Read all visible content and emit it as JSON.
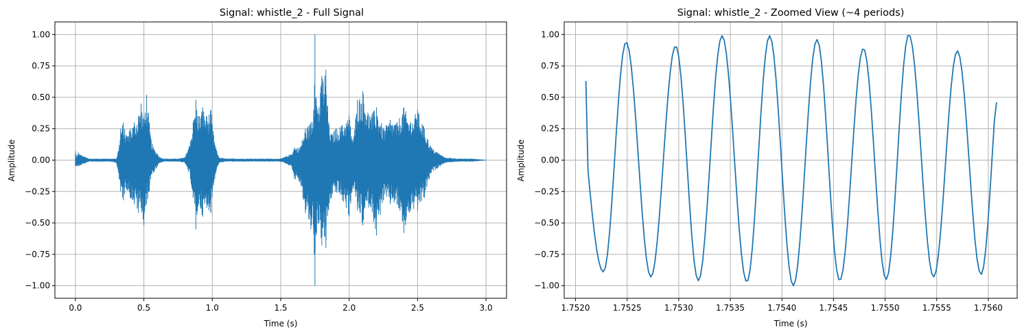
{
  "chart_data": [
    {
      "type": "line",
      "title": "Signal: whistle_2 - Full Signal",
      "xlabel": "Time (s)",
      "ylabel": "Amplitude",
      "xlim": [
        -0.15,
        3.15
      ],
      "ylim": [
        -1.1,
        1.1
      ],
      "xticks": [
        0.0,
        0.5,
        1.0,
        1.5,
        2.0,
        2.5,
        3.0
      ],
      "xtick_labels": [
        "0.0",
        "0.5",
        "1.0",
        "1.5",
        "2.0",
        "2.5",
        "3.0"
      ],
      "yticks": [
        -1.0,
        -0.75,
        -0.5,
        -0.25,
        0.0,
        0.25,
        0.5,
        0.75,
        1.0
      ],
      "ytick_labels": [
        "−1.00",
        "−0.75",
        "−0.50",
        "−0.25",
        "0.00",
        "0.25",
        "0.50",
        "0.75",
        "1.00"
      ],
      "grid": true,
      "color": "#1f77b4",
      "series": [
        {
          "name": "",
          "style": "envelope",
          "x": [
            0.0,
            0.01,
            0.02,
            0.04,
            0.06,
            0.08,
            0.1,
            0.15,
            0.2,
            0.25,
            0.3,
            0.32,
            0.33,
            0.35,
            0.37,
            0.4,
            0.43,
            0.46,
            0.48,
            0.5,
            0.52,
            0.54,
            0.55,
            0.57,
            0.6,
            0.62,
            0.65,
            0.7,
            0.75,
            0.8,
            0.84,
            0.86,
            0.88,
            0.9,
            0.93,
            0.96,
            0.99,
            1.01,
            1.03,
            1.05,
            1.1,
            1.15,
            1.2,
            1.3,
            1.4,
            1.5,
            1.58,
            1.6,
            1.64,
            1.68,
            1.72,
            1.74,
            1.75,
            1.76,
            1.78,
            1.8,
            1.83,
            1.85,
            1.87,
            1.9,
            1.95,
            2.0,
            2.03,
            2.06,
            2.1,
            2.15,
            2.2,
            2.25,
            2.3,
            2.35,
            2.4,
            2.45,
            2.5,
            2.55,
            2.6,
            2.7,
            2.8,
            2.9,
            3.0
          ],
          "upper": [
            0.07,
            0.02,
            0.06,
            0.04,
            0.03,
            0.02,
            0.01,
            0.01,
            0.01,
            0.01,
            0.01,
            0.12,
            0.25,
            0.3,
            0.2,
            0.25,
            0.3,
            0.35,
            0.45,
            0.35,
            0.52,
            0.3,
            0.18,
            0.1,
            0.05,
            0.02,
            0.01,
            0.01,
            0.01,
            0.02,
            0.15,
            0.3,
            0.48,
            0.35,
            0.42,
            0.35,
            0.4,
            0.2,
            0.08,
            0.02,
            0.01,
            0.01,
            0.01,
            0.01,
            0.01,
            0.01,
            0.05,
            0.1,
            0.1,
            0.25,
            0.3,
            0.4,
            1.0,
            0.5,
            0.42,
            0.67,
            0.72,
            0.3,
            0.2,
            0.25,
            0.28,
            0.35,
            0.15,
            0.48,
            0.55,
            0.35,
            0.42,
            0.25,
            0.32,
            0.3,
            0.42,
            0.3,
            0.4,
            0.25,
            0.1,
            0.02,
            0.01,
            0.01,
            0.0
          ],
          "lower": [
            -0.05,
            -0.04,
            -0.05,
            -0.04,
            -0.03,
            -0.02,
            -0.01,
            -0.01,
            -0.01,
            -0.01,
            -0.02,
            -0.15,
            -0.25,
            -0.32,
            -0.22,
            -0.3,
            -0.35,
            -0.42,
            -0.38,
            -0.52,
            -0.35,
            -0.25,
            -0.15,
            -0.1,
            -0.05,
            -0.02,
            -0.01,
            -0.01,
            -0.01,
            -0.02,
            -0.15,
            -0.3,
            -0.55,
            -0.35,
            -0.45,
            -0.38,
            -0.42,
            -0.2,
            -0.08,
            -0.02,
            -0.01,
            -0.01,
            -0.01,
            -0.01,
            -0.01,
            -0.01,
            -0.05,
            -0.15,
            -0.18,
            -0.42,
            -0.55,
            -0.55,
            -1.0,
            -0.6,
            -0.5,
            -0.68,
            -0.7,
            -0.4,
            -0.3,
            -0.25,
            -0.32,
            -0.45,
            -0.2,
            -0.4,
            -0.52,
            -0.35,
            -0.6,
            -0.32,
            -0.35,
            -0.35,
            -0.58,
            -0.4,
            -0.4,
            -0.3,
            -0.1,
            -0.02,
            -0.01,
            -0.01,
            0.0
          ]
        }
      ]
    },
    {
      "type": "line",
      "title": "Signal: whistle_2 - Zoomed View (~4 periods)",
      "xlabel": "Time (s)",
      "ylabel": "Amplitude",
      "xlim": [
        1.75189,
        1.75628
      ],
      "ylim": [
        -1.1,
        1.1
      ],
      "xticks": [
        1.752,
        1.7525,
        1.753,
        1.7535,
        1.754,
        1.7545,
        1.755,
        1.7555,
        1.756
      ],
      "xtick_labels": [
        "1.7520",
        "1.7525",
        "1.7530",
        "1.7535",
        "1.7540",
        "1.7545",
        "1.7550",
        "1.7555",
        "1.7560"
      ],
      "yticks": [
        -1.0,
        -0.75,
        -0.5,
        -0.25,
        0.0,
        0.25,
        0.5,
        0.75,
        1.0
      ],
      "ytick_labels": [
        "−1.00",
        "−0.75",
        "−0.50",
        "−0.25",
        "0.00",
        "0.25",
        "0.50",
        "0.75",
        "1.00"
      ],
      "grid": true,
      "color": "#1f77b4",
      "series": [
        {
          "name": "",
          "style": "oscillation",
          "x_start": 1.7521,
          "x_end": 1.75608,
          "start_value": 0.63,
          "end_value": 0.46,
          "peaks": [
            {
              "x": 1.75249,
              "y": 0.94
            },
            {
              "x": 1.75297,
              "y": 0.91
            },
            {
              "x": 1.75342,
              "y": 0.99
            },
            {
              "x": 1.75388,
              "y": 0.99
            },
            {
              "x": 1.75434,
              "y": 0.96
            },
            {
              "x": 1.75479,
              "y": 0.89
            },
            {
              "x": 1.75523,
              "y": 1.0
            },
            {
              "x": 1.7557,
              "y": 0.87
            }
          ],
          "troughs": [
            {
              "x": 1.75227,
              "y": -0.89
            },
            {
              "x": 1.75273,
              "y": -0.93
            },
            {
              "x": 1.75319,
              "y": -0.96
            },
            {
              "x": 1.75366,
              "y": -0.97
            },
            {
              "x": 1.75411,
              "y": -1.0
            },
            {
              "x": 1.75456,
              "y": -0.96
            },
            {
              "x": 1.75501,
              "y": -0.95
            },
            {
              "x": 1.75547,
              "y": -0.93
            },
            {
              "x": 1.75593,
              "y": -0.91
            }
          ]
        }
      ]
    }
  ]
}
